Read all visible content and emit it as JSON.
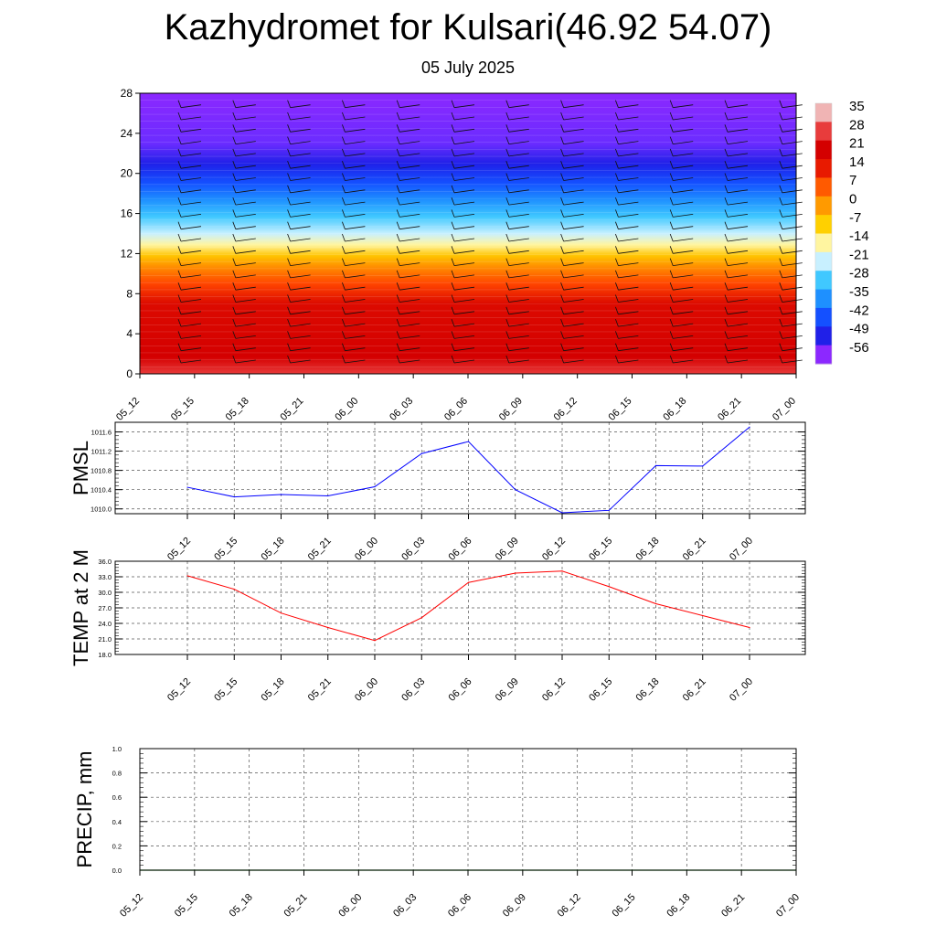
{
  "title": "Kazhydromet for Kulsari(46.92 54.07)",
  "subtitle": "05 July 2025",
  "time_labels": [
    "05_12",
    "05_15",
    "05_18",
    "05_21",
    "06_00",
    "06_03",
    "06_06",
    "06_09",
    "06_12",
    "06_15",
    "06_18",
    "06_21",
    "07_00"
  ],
  "colorbar": {
    "labels": [
      "35",
      "28",
      "21",
      "14",
      "7",
      "0",
      "-7",
      "-14",
      "-21",
      "-28",
      "-35",
      "-42",
      "-49",
      "-56"
    ],
    "colors": [
      "#f0b4b4",
      "#e83c3c",
      "#d40000",
      "#e81a00",
      "#ff5a00",
      "#ff9a00",
      "#ffd000",
      "#fff5a0",
      "#c8f0ff",
      "#40c8ff",
      "#1e90ff",
      "#1450ff",
      "#2020e8",
      "#8c28ff"
    ]
  },
  "chart_data": [
    {
      "type": "heatmap",
      "description_levels": "air temperature cross-section with wind barbs",
      "ylim": [
        0,
        28
      ],
      "yticks": [
        "0",
        "4",
        "8",
        "12",
        "16",
        "20",
        "24",
        "28"
      ],
      "xticks": [
        "05_12",
        "05_15",
        "05_18",
        "05_21",
        "06_00",
        "06_03",
        "06_06",
        "06_09",
        "06_12",
        "06_15",
        "06_18",
        "06_21",
        "07_00"
      ],
      "color_range": [
        -56,
        35
      ]
    },
    {
      "type": "line",
      "ylabel": "PMSL",
      "yticks": [
        "1010.0",
        "1010.4",
        "1010.8",
        "1011.2",
        "1011.6"
      ],
      "ylim": [
        1009.9,
        1011.8
      ],
      "color": "#0000ff",
      "x": [
        "05_12",
        "05_15",
        "05_18",
        "05_21",
        "06_00",
        "06_03",
        "06_06",
        "06_09",
        "06_12",
        "06_15",
        "06_18",
        "06_21",
        "07_00"
      ],
      "values": [
        1010.45,
        1010.25,
        1010.3,
        1010.27,
        1010.46,
        1011.15,
        1011.4,
        1010.4,
        1009.92,
        1009.97,
        1010.9,
        1010.89,
        1011.7
      ]
    },
    {
      "type": "line",
      "ylabel": "TEMP at 2 M",
      "yticks": [
        "18.0",
        "21.0",
        "24.0",
        "27.0",
        "30.0",
        "33.0",
        "36.0"
      ],
      "ylim": [
        18,
        36
      ],
      "color": "#ff0000",
      "x": [
        "05_12",
        "05_15",
        "05_18",
        "05_21",
        "06_00",
        "06_03",
        "06_06",
        "06_09",
        "06_12",
        "06_15",
        "06_18",
        "06_21",
        "07_00"
      ],
      "values": [
        33.2,
        30.6,
        26.0,
        23.2,
        20.7,
        25.1,
        31.9,
        33.7,
        34.1,
        31.1,
        27.8,
        25.5,
        23.2
      ]
    },
    {
      "type": "line",
      "ylabel": "PRECIP, mm",
      "yticks": [
        "0.0",
        "0.2",
        "0.4",
        "0.6",
        "0.8",
        "1.0"
      ],
      "ylim": [
        0,
        1
      ],
      "color": "#008000",
      "x": [
        "05_12",
        "05_15",
        "05_18",
        "05_21",
        "06_00",
        "06_03",
        "06_06",
        "06_09",
        "06_12",
        "06_15",
        "06_18",
        "06_21",
        "07_00"
      ],
      "values": [
        0,
        0,
        0,
        0,
        0,
        0,
        0,
        0,
        0,
        0,
        0,
        0,
        0
      ]
    }
  ]
}
